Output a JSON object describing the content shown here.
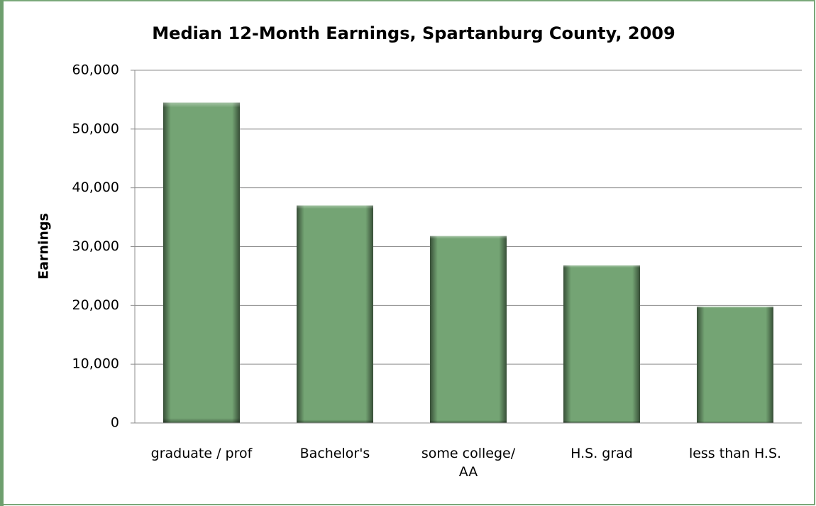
{
  "chart_data": {
    "type": "bar",
    "title": "Median 12-Month Earnings, Spartanburg County, 2009",
    "y_label": "Earnings",
    "categories": [
      "graduate / prof",
      "Bachelor's",
      "some college/ AA",
      "H.S. grad",
      "less than H.S."
    ],
    "values": [
      54500,
      37000,
      31800,
      26800,
      19800
    ],
    "color": "#7aad7a",
    "ylim": [
      0,
      60000
    ],
    "yticks": [
      0,
      {
        "value": 10000,
        "label": "10,000"
      },
      {
        "value": 20000,
        "label": "20,000"
      },
      {
        "value": 30000,
        "label": "30,000"
      },
      {
        "value": 40000,
        "label": "40,000"
      },
      {
        "value": 50000,
        "label": "50,000"
      },
      {
        "value": 60000,
        "label": "60,000"
      }
    ],
    "grid": true
  }
}
